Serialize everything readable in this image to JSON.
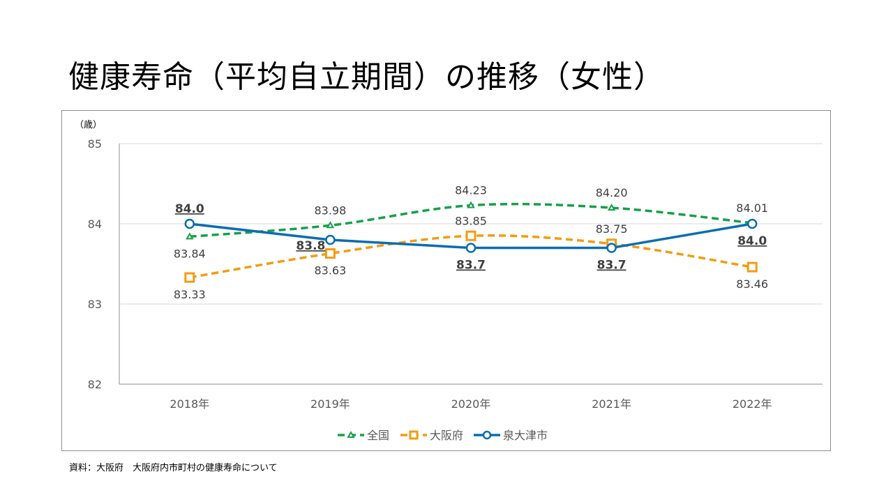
{
  "title": "健康寿命（平均自立期間）の推移（女性）",
  "source": "資料：大阪府　大阪府内市町村の健康寿命について",
  "chart_data": {
    "type": "line",
    "title": "健康寿命（平均自立期間）の推移（女性）",
    "ylabel": "（歳）",
    "xlabel": "",
    "categories": [
      "2018年",
      "2019年",
      "2020年",
      "2021年",
      "2022年"
    ],
    "ylim": [
      82,
      85
    ],
    "yticks": [
      82,
      83,
      84,
      85
    ],
    "grid": true,
    "legend": "bottom",
    "series": [
      {
        "name": "全国",
        "values": [
          83.84,
          83.98,
          84.23,
          84.2,
          84.01
        ],
        "labels": [
          "83.84",
          "83.98",
          "84.23",
          "84.20",
          "84.01"
        ],
        "color": "#16a04a",
        "dash": true,
        "marker": "triangle",
        "label_pos": [
          "below",
          "above",
          "above",
          "above",
          "above"
        ],
        "label_style": "normal"
      },
      {
        "name": "大阪府",
        "values": [
          83.33,
          83.63,
          83.85,
          83.75,
          83.46
        ],
        "labels": [
          "83.33",
          "83.63",
          "83.85",
          "83.75",
          "83.46"
        ],
        "color": "#f39c12",
        "dash": true,
        "marker": "square",
        "label_pos": [
          "below",
          "below",
          "above",
          "above",
          "below"
        ],
        "label_style": "normal"
      },
      {
        "name": "泉大津市",
        "values": [
          84.0,
          83.8,
          83.7,
          83.7,
          84.0
        ],
        "labels": [
          "84.0",
          "83.8",
          "83.7",
          "83.7",
          "84.0"
        ],
        "color": "#0b6db0",
        "dash": false,
        "marker": "circle",
        "label_pos": [
          "above",
          "left",
          "below",
          "below",
          "below"
        ],
        "label_style": "bold-underline"
      }
    ]
  }
}
